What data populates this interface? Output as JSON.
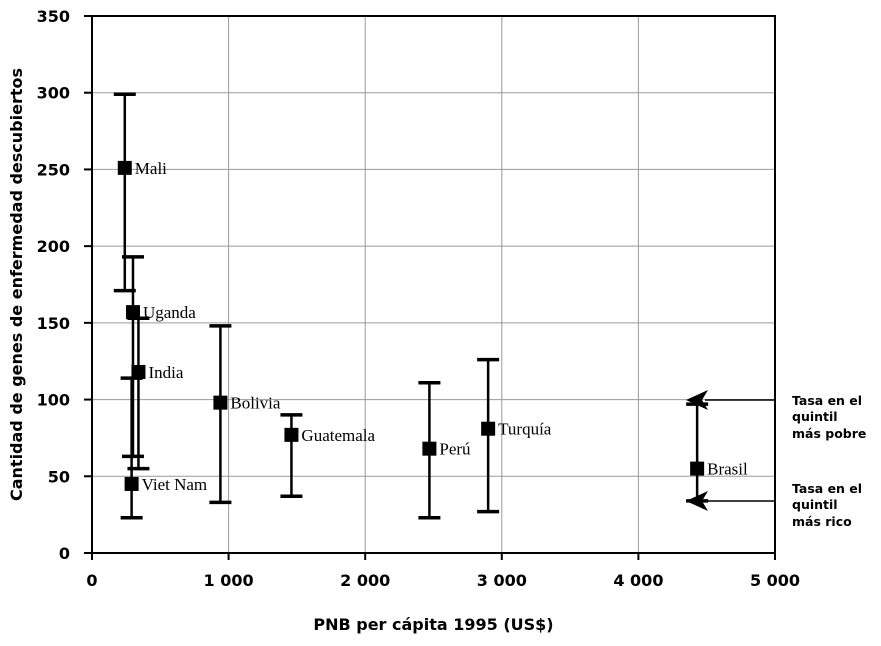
{
  "chart_data": {
    "type": "scatter",
    "title": "",
    "xlabel": "PNB per cápita 1995 (US$)",
    "ylabel": "Cantidad de genes de enfermedad descubiertos",
    "xlim": [
      0,
      5000
    ],
    "ylim": [
      0,
      350
    ],
    "grid": true,
    "x_ticks": [
      {
        "value": 0,
        "label": "0"
      },
      {
        "value": 1000,
        "label": "1 000"
      },
      {
        "value": 2000,
        "label": "2 000"
      },
      {
        "value": 3000,
        "label": "3 000"
      },
      {
        "value": 4000,
        "label": "4 000"
      },
      {
        "value": 5000,
        "label": "5 000"
      }
    ],
    "y_ticks": [
      {
        "value": 0,
        "label": "0"
      },
      {
        "value": 50,
        "label": "50"
      },
      {
        "value": 100,
        "label": "100"
      },
      {
        "value": 150,
        "label": "150"
      },
      {
        "value": 200,
        "label": "200"
      },
      {
        "value": 250,
        "label": "250"
      },
      {
        "value": 300,
        "label": "300"
      },
      {
        "value": 350,
        "label": "350"
      }
    ],
    "points": [
      {
        "label": "Mali",
        "x": 240,
        "y": 251,
        "poorest": 299,
        "richest": 171
      },
      {
        "label": "Uganda",
        "x": 300,
        "y": 157,
        "poorest": 193,
        "richest": 63
      },
      {
        "label": "India",
        "x": 340,
        "y": 118,
        "poorest": 153,
        "richest": 55
      },
      {
        "label": "Viet Nam",
        "x": 290,
        "y": 45,
        "poorest": 114,
        "richest": 23
      },
      {
        "label": "Bolivia",
        "x": 940,
        "y": 98,
        "poorest": 148,
        "richest": 33
      },
      {
        "label": "Guatemala",
        "x": 1460,
        "y": 77,
        "poorest": 90,
        "richest": 37
      },
      {
        "label": "Perú",
        "x": 2470,
        "y": 68,
        "poorest": 111,
        "richest": 23
      },
      {
        "label": "Turquía",
        "x": 2900,
        "y": 81,
        "poorest": 126,
        "richest": 27
      },
      {
        "label": "Brasil",
        "x": 4430,
        "y": 55,
        "poorest": 97,
        "richest": 34
      }
    ],
    "legend": {
      "top": [
        "Tasa en el",
        "quintil",
        "más pobre"
      ],
      "bottom": [
        "Tasa en el",
        "quintil",
        "más rico"
      ]
    }
  }
}
